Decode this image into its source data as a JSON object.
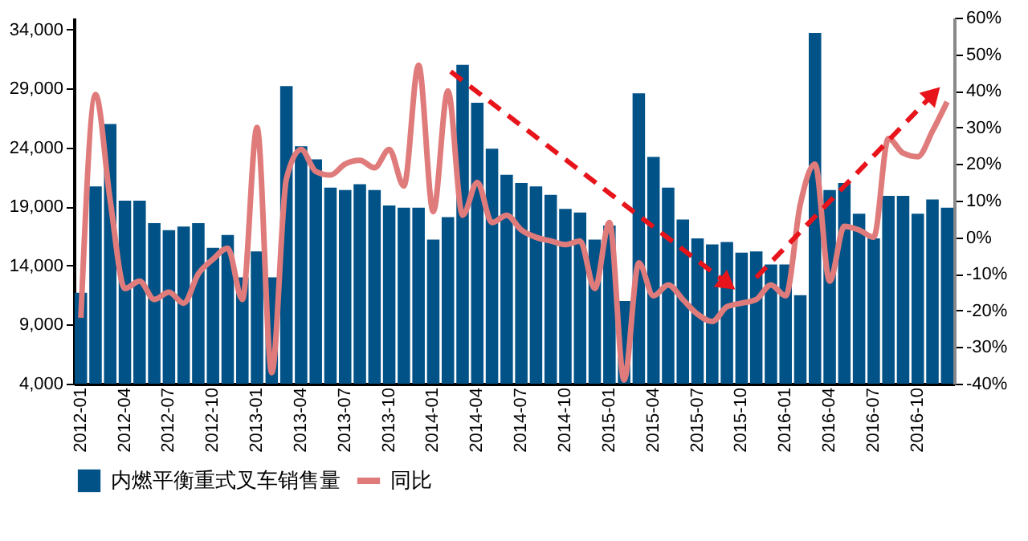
{
  "chart_data": {
    "type": "bar",
    "categories": [
      "2012-01",
      null,
      null,
      "2012-04",
      null,
      null,
      "2012-07",
      null,
      null,
      "2012-10",
      null,
      null,
      "2013-01",
      null,
      null,
      "2013-04",
      null,
      null,
      "2013-07",
      null,
      null,
      "2013-10",
      null,
      null,
      "2014-01",
      null,
      null,
      "2014-04",
      null,
      null,
      "2014-07",
      null,
      null,
      "2014-10",
      null,
      null,
      "2015-01",
      null,
      null,
      "2015-04",
      null,
      null,
      "2015-07",
      null,
      null,
      "2015-10",
      null,
      null,
      "2016-01",
      null,
      null,
      "2016-04",
      null,
      null,
      "2016-07",
      null,
      null,
      "2016-10",
      null,
      null
    ],
    "series": [
      {
        "name": "内燃平衡重式叉车销售量",
        "color": "#005287",
        "values": [
          11700,
          20700,
          26000,
          19500,
          19500,
          17600,
          17000,
          17300,
          17600,
          15500,
          16600,
          13000,
          15200,
          13000,
          29200,
          24100,
          23000,
          20600,
          20400,
          20900,
          20400,
          19100,
          18900,
          18900,
          16200,
          18100,
          31000,
          27800,
          23900,
          21700,
          21000,
          20700,
          20000,
          18800,
          18500,
          16200,
          17400,
          11000,
          28600,
          23200,
          20600,
          17900,
          16300,
          15800,
          16000,
          15100,
          15200,
          14100,
          14100,
          11500,
          33700,
          20400,
          21000,
          18400,
          16300,
          19900,
          19900,
          18400,
          19600,
          18900
        ]
      },
      {
        "name": "同比",
        "color": "#e07b7b",
        "type": "line",
        "axis": "y2",
        "values": [
          -22,
          39,
          10,
          -14,
          -12,
          -17,
          -15,
          -18,
          -10,
          -6,
          -3,
          -17,
          30,
          -37,
          16,
          24,
          18,
          17,
          20,
          21,
          19,
          24,
          14,
          47,
          7,
          40,
          6,
          15,
          4,
          6,
          2,
          0,
          -1,
          -2,
          -1,
          -14,
          4,
          -39,
          -7,
          -16,
          -13,
          -17,
          -21,
          -23,
          -19,
          -18,
          -17,
          -13,
          -16,
          9,
          20,
          -12,
          3,
          2,
          0,
          27,
          23,
          22,
          29,
          37
        ]
      }
    ],
    "ylim": [
      4000,
      35000
    ],
    "yticks": [
      {
        "value": 4000,
        "label": "4,000"
      },
      {
        "value": 9000,
        "label": "9,000"
      },
      {
        "value": 14000,
        "label": "14,000"
      },
      {
        "value": 19000,
        "label": "19,000"
      },
      {
        "value": 24000,
        "label": "24,000"
      },
      {
        "value": 29000,
        "label": "29,000"
      },
      {
        "value": 34000,
        "label": "34,000"
      }
    ],
    "y2lim": [
      -40,
      60
    ],
    "y2ticks": [
      {
        "value": -40,
        "label": "-40%"
      },
      {
        "value": -30,
        "label": "-30%"
      },
      {
        "value": -20,
        "label": "-20%"
      },
      {
        "value": -10,
        "label": "-10%"
      },
      {
        "value": 0,
        "label": "0%"
      },
      {
        "value": 10,
        "label": "10%"
      },
      {
        "value": 20,
        "label": "20%"
      },
      {
        "value": 30,
        "label": "30%"
      },
      {
        "value": 40,
        "label": "40%"
      },
      {
        "value": 50,
        "label": "50%"
      },
      {
        "value": 60,
        "label": "60%"
      }
    ],
    "grid": false,
    "legend": "bottom"
  }
}
